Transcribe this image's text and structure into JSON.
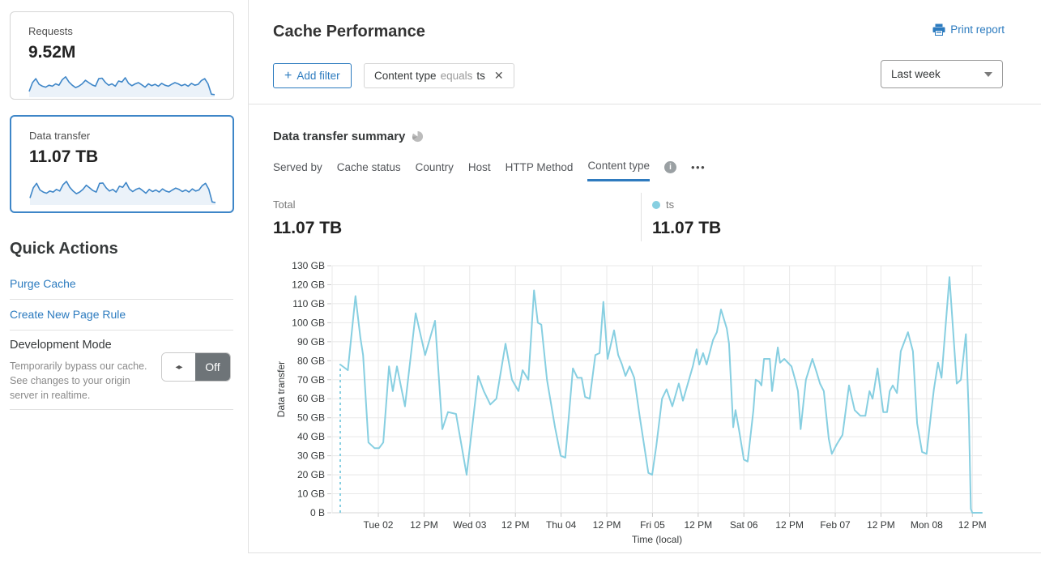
{
  "sidebar": {
    "requests_card": {
      "label": "Requests",
      "value": "9.52M"
    },
    "data_transfer_card": {
      "label": "Data transfer",
      "value": "11.07 TB"
    },
    "quick_actions_title": "Quick Actions",
    "purge_cache_label": "Purge Cache",
    "create_page_rule_label": "Create New Page Rule",
    "development_mode": {
      "title": "Development Mode",
      "description": "Temporarily bypass our cache. See changes to your origin server in realtime.",
      "toggle_state": "Off"
    },
    "sparkline_requests": [
      18,
      55,
      72,
      48,
      40,
      36,
      44,
      40,
      50,
      44,
      68,
      80,
      58,
      44,
      34,
      40,
      50,
      65,
      55,
      46,
      40,
      72,
      74,
      56,
      44,
      50,
      40,
      62,
      58,
      76,
      52,
      42,
      50,
      55,
      46,
      36,
      50,
      42,
      48,
      40,
      52,
      44,
      40,
      48,
      55,
      50,
      42,
      48,
      40,
      52,
      44,
      48,
      64,
      72,
      50,
      6,
      4
    ],
    "sparkline_data_transfer": [
      20,
      58,
      75,
      50,
      42,
      38,
      46,
      42,
      52,
      46,
      70,
      82,
      60,
      46,
      36,
      42,
      52,
      68,
      58,
      48,
      42,
      75,
      76,
      58,
      46,
      52,
      42,
      64,
      60,
      78,
      54,
      44,
      52,
      57,
      48,
      38,
      52,
      44,
      50,
      42,
      54,
      46,
      42,
      50,
      57,
      52,
      44,
      50,
      42,
      54,
      46,
      50,
      66,
      75,
      52,
      5,
      3
    ]
  },
  "header": {
    "title": "Cache Performance",
    "print_report_label": "Print report"
  },
  "filters": {
    "add_filter_label": "Add filter",
    "chip": {
      "field": "Content type",
      "operator": "equals",
      "value": "ts"
    },
    "time_range": "Last week"
  },
  "summary": {
    "title": "Data transfer summary",
    "tabs": [
      "Served by",
      "Cache status",
      "Country",
      "Host",
      "HTTP Method",
      "Content type"
    ],
    "active_tab": "Content type",
    "more_label": "•••",
    "total_label": "Total",
    "total_value": "11.07 TB",
    "legend": {
      "name": "ts",
      "value": "11.07 TB"
    }
  },
  "colors": {
    "accent_blue": "#2c7bbf",
    "selected_card_border": "#3e86c8",
    "sparkline_stroke": "#3e86c8",
    "sparkline_fill": "#ebf2f9",
    "chart_line": "#87cfe1",
    "grid": "#e8e8e8",
    "toggle_off_bg": "#6e7478"
  },
  "chart_data": {
    "type": "line",
    "title": "Data transfer summary (ts)",
    "xlabel": "Time (local)",
    "ylabel": "Data transfer",
    "unit": "GB",
    "ylim": [
      0,
      130
    ],
    "y_tick_labels": [
      "0 B",
      "10 GB",
      "20 GB",
      "30 GB",
      "40 GB",
      "50 GB",
      "60 GB",
      "70 GB",
      "80 GB",
      "90 GB",
      "100 GB",
      "110 GB",
      "120 GB",
      "130 GB"
    ],
    "x_range_hours": [
      0,
      168.5
    ],
    "x_ticks": [
      {
        "h": 10,
        "label": "Tue 02"
      },
      {
        "h": 22,
        "label": "12 PM"
      },
      {
        "h": 34,
        "label": "Wed 03"
      },
      {
        "h": 46,
        "label": "12 PM"
      },
      {
        "h": 58,
        "label": "Thu 04"
      },
      {
        "h": 70,
        "label": "12 PM"
      },
      {
        "h": 82,
        "label": "Fri 05"
      },
      {
        "h": 94,
        "label": "12 PM"
      },
      {
        "h": 106,
        "label": "Sat 06"
      },
      {
        "h": 118,
        "label": "12 PM"
      },
      {
        "h": 130,
        "label": "Feb 07"
      },
      {
        "h": 142,
        "label": "12 PM"
      },
      {
        "h": 154,
        "label": "Mon 08"
      },
      {
        "h": 166,
        "label": "12 PM"
      }
    ],
    "leading_dashed_from_zero": true,
    "legend_position": "top-right",
    "grid": true,
    "series": [
      {
        "name": "ts",
        "color": "#87cfe1",
        "points": [
          [
            0,
            78
          ],
          [
            2,
            75
          ],
          [
            4,
            114
          ],
          [
            5.3,
            92
          ],
          [
            6,
            83
          ],
          [
            7.4,
            37
          ],
          [
            9,
            34
          ],
          [
            10.2,
            34
          ],
          [
            11.3,
            37
          ],
          [
            12.8,
            77
          ],
          [
            13.8,
            64
          ],
          [
            14.9,
            77
          ],
          [
            17,
            56
          ],
          [
            19.8,
            105
          ],
          [
            22.3,
            83
          ],
          [
            24.9,
            101
          ],
          [
            26.8,
            44
          ],
          [
            28.3,
            53
          ],
          [
            30.4,
            52
          ],
          [
            33.2,
            20
          ],
          [
            36.2,
            72
          ],
          [
            37.7,
            64
          ],
          [
            39.4,
            57
          ],
          [
            41,
            60
          ],
          [
            43.4,
            89
          ],
          [
            45.1,
            70
          ],
          [
            46.8,
            64
          ],
          [
            47.9,
            75
          ],
          [
            49.4,
            70
          ],
          [
            50.9,
            117
          ],
          [
            51.9,
            100
          ],
          [
            52.8,
            99
          ],
          [
            54.3,
            70
          ],
          [
            56.4,
            45
          ],
          [
            57.9,
            30
          ],
          [
            59.1,
            29
          ],
          [
            61.1,
            76
          ],
          [
            62.3,
            71
          ],
          [
            63.4,
            71
          ],
          [
            64.3,
            61
          ],
          [
            65.5,
            60
          ],
          [
            67,
            83
          ],
          [
            68.1,
            84
          ],
          [
            69.1,
            111
          ],
          [
            70.2,
            81
          ],
          [
            71.9,
            96
          ],
          [
            73,
            83
          ],
          [
            74,
            78
          ],
          [
            74.9,
            72
          ],
          [
            76,
            77
          ],
          [
            77.2,
            71
          ],
          [
            78.7,
            50
          ],
          [
            80.9,
            21
          ],
          [
            81.9,
            20
          ],
          [
            83,
            35
          ],
          [
            84.5,
            60
          ],
          [
            85.7,
            65
          ],
          [
            87.2,
            56
          ],
          [
            88.9,
            68
          ],
          [
            90,
            59
          ],
          [
            92.6,
            77
          ],
          [
            93.6,
            86
          ],
          [
            94.3,
            78
          ],
          [
            95.3,
            84
          ],
          [
            96.2,
            78
          ],
          [
            97.9,
            91
          ],
          [
            98.9,
            95
          ],
          [
            100,
            107
          ],
          [
            101.5,
            97
          ],
          [
            102.1,
            89
          ],
          [
            103.2,
            45
          ],
          [
            103.8,
            54
          ],
          [
            104.7,
            44
          ],
          [
            106,
            28
          ],
          [
            107,
            27
          ],
          [
            108.5,
            54
          ],
          [
            109.1,
            70
          ],
          [
            110,
            69
          ],
          [
            110.6,
            67
          ],
          [
            111.3,
            81
          ],
          [
            112.8,
            81
          ],
          [
            113.4,
            64
          ],
          [
            114.9,
            87
          ],
          [
            115.5,
            79
          ],
          [
            116.6,
            81
          ],
          [
            118.5,
            77
          ],
          [
            119.6,
            69
          ],
          [
            120.2,
            64
          ],
          [
            120.9,
            44
          ],
          [
            122.3,
            70
          ],
          [
            124,
            81
          ],
          [
            125.1,
            74
          ],
          [
            126,
            68
          ],
          [
            127,
            64
          ],
          [
            128.3,
            39
          ],
          [
            129.1,
            31
          ],
          [
            130.4,
            36
          ],
          [
            131.9,
            41
          ],
          [
            133.6,
            67
          ],
          [
            135.1,
            54
          ],
          [
            136.6,
            51
          ],
          [
            137.9,
            51
          ],
          [
            139,
            64
          ],
          [
            139.8,
            60
          ],
          [
            141.1,
            76
          ],
          [
            142.6,
            53
          ],
          [
            143.6,
            53
          ],
          [
            144.3,
            64
          ],
          [
            145.1,
            67
          ],
          [
            146.2,
            63
          ],
          [
            147.2,
            85
          ],
          [
            149.1,
            95
          ],
          [
            150.4,
            85
          ],
          [
            151.5,
            47
          ],
          [
            152.8,
            32
          ],
          [
            154,
            31
          ],
          [
            155.3,
            55
          ],
          [
            155.9,
            65
          ],
          [
            157,
            79
          ],
          [
            157.9,
            71
          ],
          [
            160,
            124
          ],
          [
            161.9,
            68
          ],
          [
            163,
            70
          ],
          [
            164.3,
            94
          ],
          [
            165.1,
            50
          ],
          [
            165.6,
            2
          ],
          [
            166,
            0
          ],
          [
            168.5,
            0
          ]
        ]
      }
    ]
  }
}
